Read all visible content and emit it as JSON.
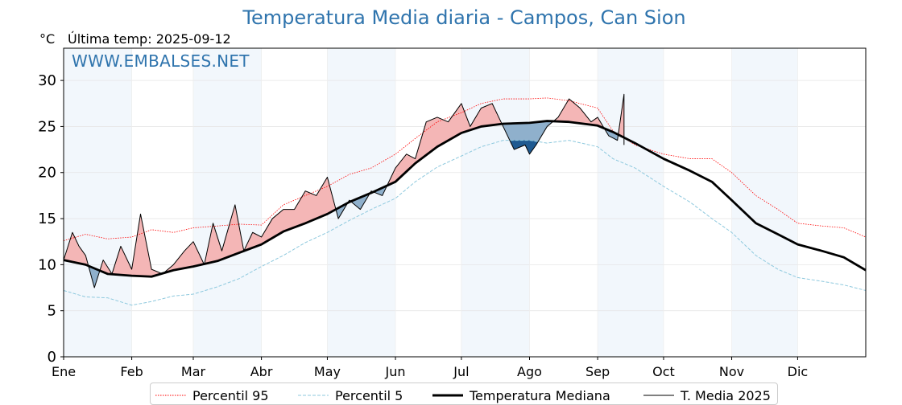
{
  "header": {
    "title": "Temperatura Media diaria - Campos, Can Sion",
    "unit": "°C",
    "last_temp": "Última temp: 2025-09-12",
    "watermark": "WWW.EMBALSES.NET"
  },
  "legend": {
    "items": [
      {
        "label": "Percentil 95",
        "color": "#ff0000",
        "style": "dotted"
      },
      {
        "label": "Percentil 5",
        "color": "#8ec9de",
        "style": "dashed"
      },
      {
        "label": "Temperatura Mediana",
        "color": "#000000",
        "style": "thick"
      },
      {
        "label": "T. Media 2025",
        "color": "#000000",
        "style": "thin"
      }
    ]
  },
  "chart_data": {
    "type": "line",
    "title": "Temperatura Media diaria - Campos, Can Sion",
    "ylabel": "°C",
    "ylim": [
      0,
      33.5
    ],
    "yticks": [
      0,
      5,
      10,
      15,
      20,
      25,
      30
    ],
    "xlim": [
      0,
      365
    ],
    "months": [
      "Ene",
      "Feb",
      "Mar",
      "Abr",
      "May",
      "Jun",
      "Jul",
      "Ago",
      "Sep",
      "Oct",
      "Nov",
      "Dic"
    ],
    "month_starts": [
      0,
      31,
      59,
      90,
      120,
      151,
      181,
      212,
      243,
      273,
      304,
      334
    ],
    "grid": true,
    "shaded_months": [
      0,
      2,
      4,
      6,
      8,
      10
    ],
    "colors": {
      "above_median": "#f4b6b6",
      "below_median": "#8fb0cc",
      "below_p5": "#1f5a91"
    },
    "series": [
      {
        "name": "Percentil 95",
        "x": [
          0,
          10,
          20,
          31,
          40,
          50,
          59,
          70,
          80,
          90,
          100,
          110,
          120,
          130,
          140,
          151,
          160,
          170,
          181,
          190,
          200,
          212,
          220,
          230,
          243,
          250,
          260,
          273,
          285,
          295,
          304,
          315,
          325,
          334,
          345,
          355,
          365
        ],
        "values": [
          12.6,
          13.3,
          12.8,
          13.0,
          13.8,
          13.5,
          14.0,
          14.2,
          14.4,
          14.3,
          16.5,
          17.5,
          18.5,
          19.8,
          20.5,
          22.0,
          23.7,
          25.5,
          26.5,
          27.5,
          28.0,
          28.0,
          28.1,
          27.8,
          27.0,
          24.5,
          23.0,
          22.0,
          21.5,
          21.5,
          20.0,
          17.5,
          16.0,
          14.5,
          14.2,
          14.0,
          13.0
        ]
      },
      {
        "name": "Percentil 5",
        "x": [
          0,
          10,
          20,
          31,
          40,
          50,
          59,
          70,
          80,
          90,
          100,
          110,
          120,
          130,
          140,
          151,
          160,
          170,
          181,
          190,
          200,
          212,
          220,
          230,
          243,
          250,
          260,
          273,
          285,
          295,
          304,
          315,
          325,
          334,
          345,
          355,
          365
        ],
        "values": [
          7.2,
          6.5,
          6.4,
          5.6,
          6.0,
          6.6,
          6.8,
          7.6,
          8.5,
          9.8,
          11.0,
          12.4,
          13.5,
          14.8,
          16.0,
          17.2,
          19.0,
          20.6,
          21.8,
          22.8,
          23.5,
          23.5,
          23.2,
          23.5,
          22.8,
          21.5,
          20.5,
          18.5,
          16.8,
          15.0,
          13.5,
          11.0,
          9.5,
          8.6,
          8.2,
          7.8,
          7.2
        ]
      },
      {
        "name": "Temperatura Mediana",
        "x": [
          0,
          10,
          20,
          31,
          40,
          50,
          59,
          70,
          80,
          90,
          100,
          110,
          120,
          130,
          140,
          151,
          160,
          170,
          181,
          190,
          200,
          212,
          220,
          230,
          243,
          250,
          260,
          273,
          285,
          295,
          304,
          315,
          325,
          334,
          345,
          355,
          365
        ],
        "values": [
          10.5,
          10.0,
          9.0,
          8.8,
          8.7,
          9.4,
          9.8,
          10.4,
          11.3,
          12.2,
          13.6,
          14.5,
          15.5,
          16.8,
          17.8,
          19.0,
          21.0,
          22.8,
          24.3,
          25.0,
          25.3,
          25.4,
          25.6,
          25.5,
          25.1,
          24.4,
          23.2,
          21.5,
          20.2,
          19.0,
          17.0,
          14.5,
          13.3,
          12.2,
          11.5,
          10.8,
          9.4
        ]
      },
      {
        "name": "T. Media 2025",
        "x": [
          0,
          4,
          7,
          10,
          14,
          18,
          22,
          26,
          31,
          35,
          40,
          45,
          50,
          55,
          59,
          64,
          68,
          72,
          78,
          82,
          86,
          90,
          95,
          100,
          105,
          110,
          115,
          120,
          125,
          130,
          135,
          140,
          145,
          151,
          156,
          160,
          165,
          170,
          175,
          181,
          185,
          190,
          195,
          200,
          205,
          210,
          212,
          215,
          220,
          225,
          230,
          235,
          240,
          243,
          248,
          252,
          255,
          255
        ],
        "values": [
          10.5,
          13.5,
          12.0,
          11.0,
          7.5,
          10.5,
          9.0,
          12.0,
          9.5,
          15.5,
          9.5,
          9.0,
          10.0,
          11.5,
          12.5,
          10.0,
          14.5,
          11.5,
          16.5,
          11.5,
          13.5,
          13.0,
          15.0,
          16.0,
          16.0,
          18.0,
          17.5,
          19.5,
          15.0,
          17.0,
          16.0,
          18.0,
          17.5,
          20.5,
          22.0,
          21.5,
          25.5,
          26.0,
          25.5,
          27.5,
          25.0,
          27.0,
          27.5,
          25.0,
          22.5,
          23.0,
          22.0,
          23.0,
          25.0,
          26.0,
          28.0,
          27.0,
          25.5,
          26.0,
          24.0,
          23.5,
          28.5,
          23.0
        ]
      }
    ]
  }
}
